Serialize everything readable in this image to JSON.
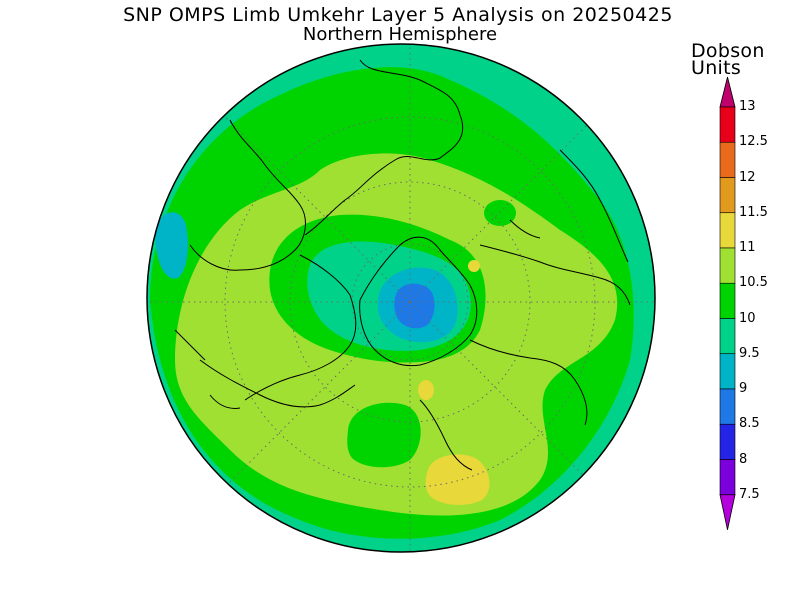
{
  "title": {
    "line1": "SNP OMPS Limb Umkehr Layer 5 Analysis on 20250425",
    "line2": "Northern Hemisphere"
  },
  "colorbar": {
    "unit_line1": "Dobson",
    "unit_line2": "Units",
    "levels": [
      {
        "label": "13",
        "color": "#c0006b"
      },
      {
        "label": "12.5",
        "color": "#e8001a"
      },
      {
        "label": "12",
        "color": "#ea6a1c"
      },
      {
        "label": "11.5",
        "color": "#e29a1e"
      },
      {
        "label": "11",
        "color": "#e8d83a"
      },
      {
        "label": "10.5",
        "color": "#a0e032"
      },
      {
        "label": "10",
        "color": "#00d400"
      },
      {
        "label": "9.5",
        "color": "#00d28a"
      },
      {
        "label": "9",
        "color": "#00b4c8"
      },
      {
        "label": "8.5",
        "color": "#1e78e6"
      },
      {
        "label": "8",
        "color": "#2424e6"
      },
      {
        "label": "7.5",
        "color": "#7a00dc"
      }
    ],
    "top_arrow_color": "#c0006b",
    "bottom_arrow_color": "#b400dc"
  },
  "map": {
    "projection": "polar-stereographic",
    "hemisphere": "north",
    "graticule": "dotted"
  }
}
